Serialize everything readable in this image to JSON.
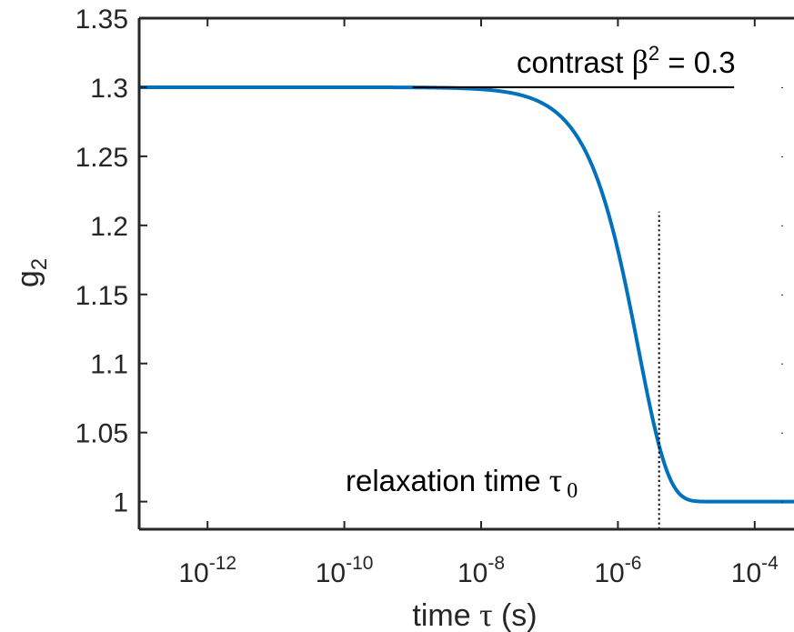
{
  "chart_data": {
    "type": "line",
    "xscale": "log",
    "xlim": [
      1e-13,
      0.001
    ],
    "ylim": [
      0.98,
      1.35
    ],
    "xlabel": {
      "prefix": "time ",
      "symbol": "τ",
      "suffix": " (s)"
    },
    "ylabel": {
      "base": "g",
      "sub": "2"
    },
    "xtick_values": [
      1e-12,
      1e-10,
      1e-08,
      1e-06,
      0.0001
    ],
    "xtick_labels": [
      {
        "base": "10",
        "exp": "-12"
      },
      {
        "base": "10",
        "exp": "-10"
      },
      {
        "base": "10",
        "exp": "-8"
      },
      {
        "base": "10",
        "exp": "-6"
      },
      {
        "base": "10",
        "exp": "-4"
      }
    ],
    "ytick_values": [
      1,
      1.05,
      1.1,
      1.15,
      1.2,
      1.25,
      1.3,
      1.35
    ],
    "ytick_labels": [
      "1",
      "1.05",
      "1.1",
      "1.15",
      "1.2",
      "1.25",
      "1.3",
      "1.35"
    ],
    "series": [
      {
        "model": "g2 = 1 + beta2 * exp(-2*tau/tau0)",
        "beta2": 0.3,
        "tau0": 4e-06,
        "x_range": [
          1e-13,
          0.001
        ],
        "color": "#0072BD"
      }
    ],
    "annotations": {
      "contrast": {
        "text_prefix": "contrast ",
        "symbol": "β",
        "sup": "2",
        "text_suffix": " = 0.3"
      },
      "contrast_line": {
        "x": [
          1e-09,
          5e-05
        ],
        "y": 1.3,
        "color": "#000000"
      },
      "relaxation": {
        "text_prefix": "relaxation time ",
        "symbol": "τ",
        "sub": "0"
      },
      "relaxation_line": {
        "x": 4e-06,
        "y": [
          0.98,
          1.21
        ],
        "color": "#000000",
        "style": "dotted"
      }
    },
    "grid": false,
    "legend": "none"
  }
}
